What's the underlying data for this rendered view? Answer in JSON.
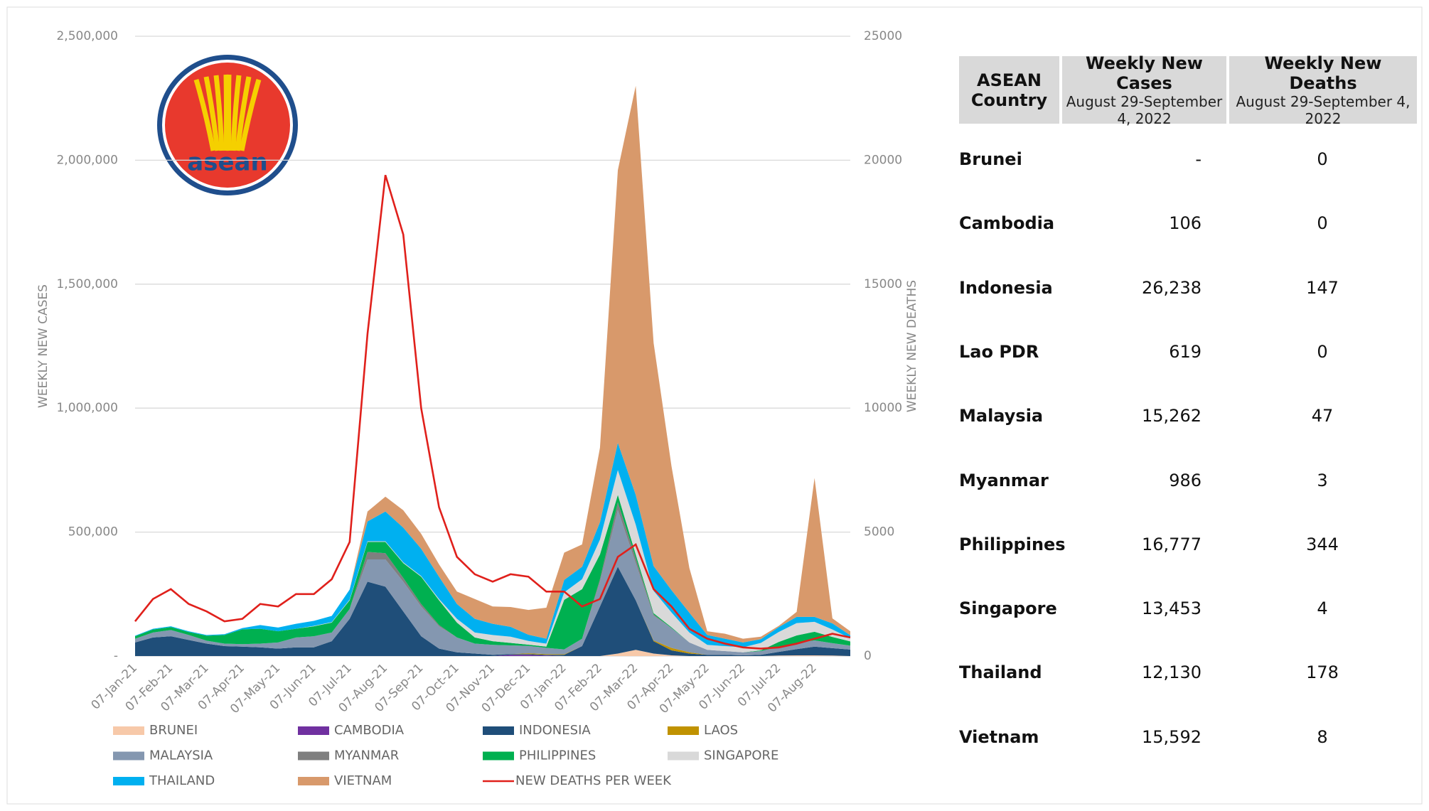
{
  "chart_data": {
    "type": "area",
    "stacked": true,
    "y_label": "WEEKLY NEW CASES",
    "y2_label": "WEEKLY NEW DEATHS",
    "categories": [
      "07-Jan-21",
      null,
      "07-Feb-21",
      null,
      "07-Mar-21",
      null,
      "07-Apr-21",
      null,
      "07-May-21",
      null,
      "07-Jun-21",
      null,
      "07-Jul-21",
      null,
      "07-Aug-21",
      null,
      "07-Sep-21",
      null,
      "07-Oct-21",
      null,
      "07-Nov-21",
      null,
      "07-Dec-21",
      null,
      "07-Jan-22",
      null,
      "07-Feb-22",
      null,
      "07-Mar-22",
      null,
      "07-Apr-22",
      null,
      "07-May-22",
      null,
      "07-Jun-22",
      null,
      "07-Jul-22",
      null,
      "07-Aug-22",
      null,
      null
    ],
    "ylim": [
      0,
      2500000
    ],
    "yticks": [
      {
        "value": 0,
        "label": "-"
      },
      {
        "value": 500000,
        "label": "500,000"
      },
      {
        "value": 1000000,
        "label": "1,000,000"
      },
      {
        "value": 1500000,
        "label": "1,500,000"
      },
      {
        "value": 2000000,
        "label": "2,000,000"
      },
      {
        "value": 2500000,
        "label": "2,500,000"
      }
    ],
    "y2lim": [
      0,
      25000
    ],
    "y2ticks": [
      0,
      5000,
      10000,
      15000,
      20000,
      25000
    ],
    "grid": true,
    "series": [
      {
        "name": "BRUNEI",
        "color": "#f7c9a9",
        "values": [
          0,
          0,
          0,
          0,
          0,
          0,
          0,
          0,
          0,
          0,
          0,
          0,
          0,
          0,
          0,
          0,
          0,
          0,
          0,
          0,
          0,
          0,
          0,
          0,
          0,
          0,
          0,
          10000,
          25000,
          10000,
          3000,
          0,
          0,
          0,
          0,
          0,
          2000,
          3000,
          3000,
          2000,
          0
        ]
      },
      {
        "name": "CAMBODIA",
        "color": "#7030a0",
        "values": [
          0,
          0,
          0,
          0,
          0,
          0,
          0,
          0,
          0,
          0,
          0,
          0,
          0,
          0,
          0,
          0,
          0,
          0,
          0,
          0,
          0,
          5000,
          5000,
          2000,
          0,
          0,
          0,
          0,
          0,
          0,
          0,
          0,
          0,
          0,
          0,
          0,
          0,
          0,
          0,
          0,
          0
        ]
      },
      {
        "name": "INDONESIA",
        "color": "#1f4e79",
        "values": [
          55000,
          75000,
          80000,
          65000,
          50000,
          40000,
          38000,
          35000,
          30000,
          35000,
          35000,
          60000,
          150000,
          300000,
          280000,
          180000,
          80000,
          30000,
          15000,
          10000,
          5000,
          3000,
          3000,
          3000,
          5000,
          40000,
          200000,
          350000,
          200000,
          50000,
          20000,
          10000,
          5000,
          5000,
          3000,
          5000,
          15000,
          25000,
          35000,
          30000,
          26000
        ]
      },
      {
        "name": "LAOS",
        "color": "#c09200",
        "values": [
          0,
          0,
          0,
          0,
          0,
          0,
          0,
          0,
          0,
          0,
          0,
          0,
          0,
          0,
          0,
          0,
          0,
          0,
          0,
          0,
          0,
          0,
          3000,
          3000,
          2000,
          0,
          0,
          0,
          0,
          3000,
          10000,
          5000,
          0,
          0,
          0,
          0,
          0,
          0,
          0,
          0,
          0
        ]
      },
      {
        "name": "MALAYSIA",
        "color": "#8497b0",
        "values": [
          15000,
          20000,
          25000,
          20000,
          12000,
          10000,
          10000,
          15000,
          25000,
          40000,
          45000,
          35000,
          40000,
          90000,
          110000,
          120000,
          120000,
          90000,
          60000,
          40000,
          40000,
          35000,
          30000,
          25000,
          20000,
          30000,
          100000,
          230000,
          150000,
          100000,
          80000,
          40000,
          20000,
          15000,
          12000,
          15000,
          20000,
          25000,
          25000,
          20000,
          15000
        ]
      },
      {
        "name": "MYANMAR",
        "color": "#7f7f7f",
        "values": [
          0,
          0,
          0,
          0,
          0,
          0,
          0,
          0,
          0,
          0,
          0,
          0,
          0,
          30000,
          25000,
          15000,
          10000,
          5000,
          0,
          0,
          0,
          0,
          0,
          0,
          0,
          0,
          10000,
          30000,
          20000,
          5000,
          0,
          0,
          0,
          0,
          0,
          0,
          0,
          0,
          0,
          0,
          1000
        ]
      },
      {
        "name": "PHILIPPINES",
        "color": "#00b050",
        "values": [
          10000,
          12000,
          12000,
          12000,
          20000,
          35000,
          60000,
          60000,
          45000,
          35000,
          40000,
          40000,
          35000,
          40000,
          45000,
          60000,
          110000,
          100000,
          60000,
          25000,
          15000,
          10000,
          5000,
          5000,
          200000,
          200000,
          100000,
          30000,
          15000,
          5000,
          3000,
          0,
          0,
          0,
          0,
          3000,
          20000,
          30000,
          35000,
          25000,
          17000
        ]
      },
      {
        "name": "SINGAPORE",
        "color": "#d9d9d9",
        "values": [
          0,
          0,
          0,
          0,
          0,
          0,
          0,
          0,
          0,
          0,
          2000,
          2000,
          3000,
          3000,
          3000,
          3000,
          3000,
          5000,
          15000,
          20000,
          25000,
          25000,
          15000,
          12000,
          30000,
          40000,
          60000,
          100000,
          120000,
          90000,
          60000,
          40000,
          20000,
          20000,
          20000,
          30000,
          40000,
          50000,
          40000,
          30000,
          13000
        ]
      },
      {
        "name": "THAILAND",
        "color": "#00b0f0",
        "values": [
          2000,
          3000,
          3000,
          3000,
          3000,
          3000,
          5000,
          15000,
          15000,
          20000,
          20000,
          25000,
          40000,
          80000,
          120000,
          140000,
          110000,
          90000,
          60000,
          55000,
          45000,
          40000,
          25000,
          20000,
          50000,
          50000,
          70000,
          110000,
          120000,
          100000,
          90000,
          80000,
          40000,
          30000,
          20000,
          15000,
          20000,
          25000,
          20000,
          25000,
          12000
        ]
      },
      {
        "name": "VIETNAM",
        "color": "#d8996b",
        "values": [
          0,
          0,
          0,
          0,
          0,
          0,
          0,
          0,
          0,
          0,
          0,
          0,
          0,
          40000,
          60000,
          70000,
          60000,
          50000,
          50000,
          80000,
          70000,
          80000,
          100000,
          125000,
          110000,
          90000,
          300000,
          1100000,
          1650000,
          900000,
          500000,
          180000,
          15000,
          20000,
          15000,
          10000,
          5000,
          20000,
          560000,
          20000,
          16000
        ]
      },
      {
        "name": "NEW DEATHS PER WEEK",
        "color": "#e0201b",
        "axis": "y2",
        "type": "line",
        "values": [
          1400,
          2300,
          2700,
          2100,
          1800,
          1400,
          1500,
          2100,
          2000,
          2500,
          2500,
          3100,
          4600,
          13000,
          19400,
          17000,
          10000,
          6000,
          4000,
          3300,
          3000,
          3300,
          3200,
          2600,
          2600,
          2000,
          2300,
          4000,
          4500,
          2700,
          2000,
          1100,
          700,
          500,
          350,
          300,
          350,
          500,
          700,
          900,
          750
        ]
      }
    ]
  },
  "logo": {
    "text": "asean"
  },
  "table": {
    "header": [
      {
        "title": "ASEAN Country"
      },
      {
        "title": "Weekly New Cases",
        "subtitle": "August 29-September 4, 2022"
      },
      {
        "title": "Weekly New Deaths",
        "subtitle": "August 29-September 4, 2022"
      }
    ],
    "rows": [
      [
        "Brunei",
        "-",
        "0"
      ],
      [
        "Cambodia",
        "106",
        "0"
      ],
      [
        "Indonesia",
        "26,238",
        "147"
      ],
      [
        "Lao PDR",
        "619",
        "0"
      ],
      [
        "Malaysia",
        "15,262",
        "47"
      ],
      [
        "Myanmar",
        "986",
        "3"
      ],
      [
        "Philippines",
        "16,777",
        "344"
      ],
      [
        "Singapore",
        "13,453",
        "4"
      ],
      [
        "Thailand",
        "12,130",
        "178"
      ],
      [
        "Vietnam",
        "15,592",
        "8"
      ]
    ]
  }
}
